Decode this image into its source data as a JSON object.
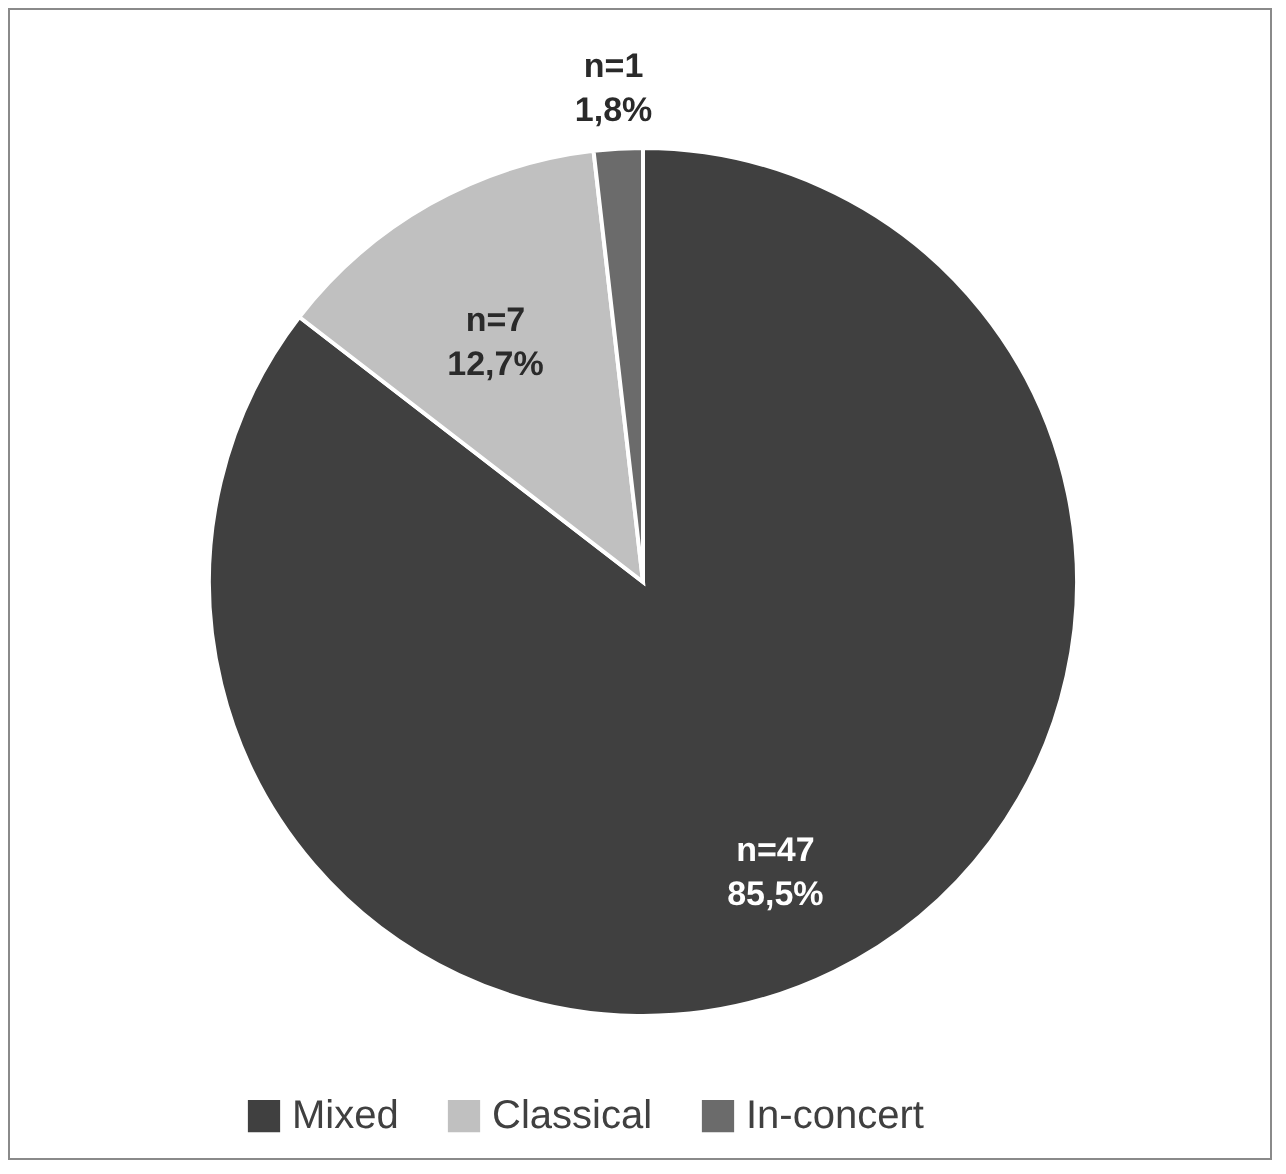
{
  "chart_data": {
    "type": "pie",
    "categories": [
      "Mixed",
      "Classical",
      "In-concert"
    ],
    "values": [
      47,
      7,
      1
    ],
    "colors": [
      "#404040",
      "#c0c0c0",
      "#6b6b6b"
    ],
    "value_labels": [
      "n=47\n85,5%",
      "n=7\n12,7%",
      "n=1\n1,8%"
    ],
    "legend": "bottom"
  }
}
